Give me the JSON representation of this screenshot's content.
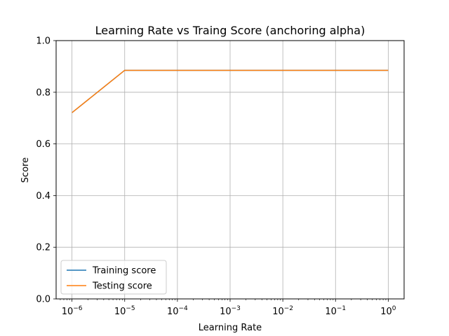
{
  "chart_data": {
    "type": "line",
    "title": "Learning Rate vs Traing Score (anchoring alpha)",
    "xlabel": "Learning Rate",
    "ylabel": "Score",
    "x_scale": "log",
    "x": [
      1e-06,
      1e-05,
      0.0001,
      0.001,
      0.01,
      0.1,
      1
    ],
    "xlim": [
      5e-07,
      2
    ],
    "ylim": [
      0,
      1
    ],
    "x_ticks": [
      {
        "base": "10",
        "exp": "−6"
      },
      {
        "base": "10",
        "exp": "−5"
      },
      {
        "base": "10",
        "exp": "−4"
      },
      {
        "base": "10",
        "exp": "−3"
      },
      {
        "base": "10",
        "exp": "−2"
      },
      {
        "base": "10",
        "exp": "−1"
      },
      {
        "base": "10",
        "exp": "0"
      }
    ],
    "y_ticks": [
      "0.0",
      "0.2",
      "0.4",
      "0.6",
      "0.8",
      "1.0"
    ],
    "grid": true,
    "legend_position": "lower-left",
    "series": [
      {
        "name": "Training score",
        "color": "#1f77b4",
        "values": [
          0.721,
          0.885,
          0.885,
          0.885,
          0.885,
          0.885,
          0.885
        ]
      },
      {
        "name": "Testing score",
        "color": "#ff7f0e",
        "values": [
          0.721,
          0.885,
          0.885,
          0.885,
          0.885,
          0.885,
          0.885
        ]
      }
    ]
  }
}
